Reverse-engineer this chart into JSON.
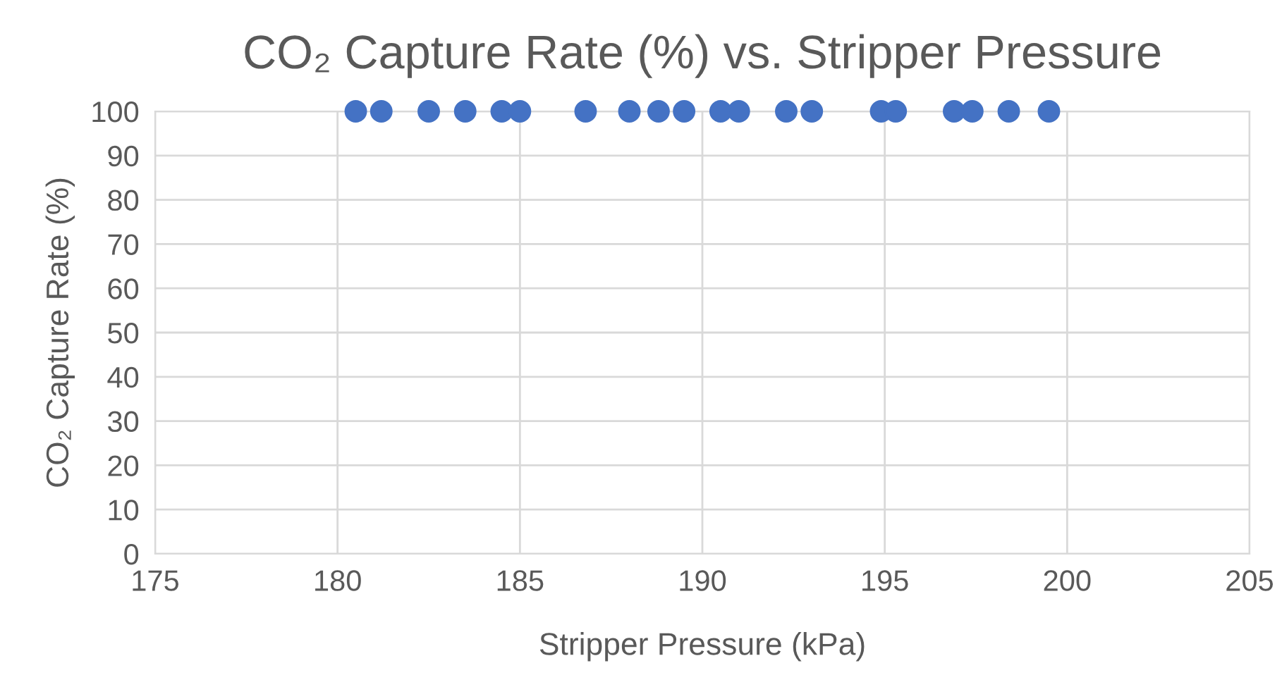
{
  "chart_data": {
    "type": "scatter",
    "title": "CO₂ Capture Rate (%) vs. Stripper Pressure",
    "xlabel": "Stripper Pressure (kPa)",
    "ylabel": "CO₂ Capture Rate (%)",
    "x": [
      180.5,
      181.2,
      182.5,
      183.5,
      184.5,
      185.0,
      186.8,
      188.0,
      188.8,
      189.5,
      190.5,
      191.0,
      192.3,
      193.0,
      194.9,
      195.3,
      196.9,
      197.4,
      198.4,
      199.5
    ],
    "series": [
      {
        "color": "#4472c4",
        "values": [
          100,
          100,
          100,
          100,
          100,
          100,
          100,
          100,
          100,
          100,
          100,
          100,
          100,
          100,
          100,
          100,
          100,
          100,
          100,
          100
        ]
      }
    ],
    "xlim": [
      175,
      205
    ],
    "xticks": [
      175,
      180,
      185,
      190,
      195,
      200,
      205
    ],
    "ylim": [
      0,
      100
    ],
    "yticks": [
      0,
      10,
      20,
      30,
      40,
      50,
      60,
      70,
      80,
      90,
      100
    ],
    "grid": true,
    "marker": "circle"
  }
}
